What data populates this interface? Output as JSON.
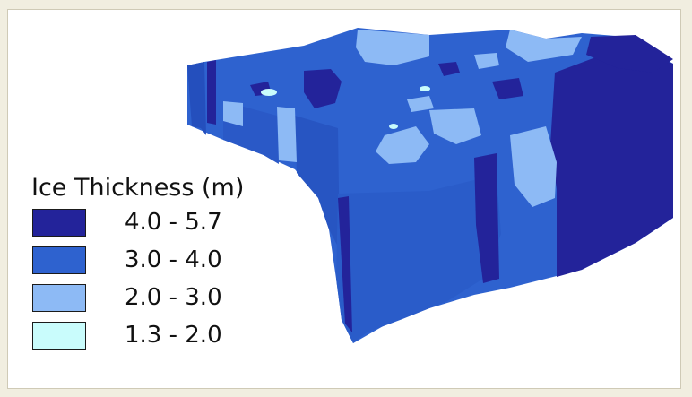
{
  "legend": {
    "title": "Ice Thickness (m)",
    "classes": [
      {
        "label": "4.0 - 5.7",
        "color": "#23239a"
      },
      {
        "label": "3.0 - 4.0",
        "color": "#2e62cf"
      },
      {
        "label": "2.0 - 3.0",
        "color": "#8dbaf5"
      },
      {
        "label": "1.3 - 2.0",
        "color": "#c9fcfc"
      }
    ]
  },
  "colors": {
    "background": "#f1eee0",
    "panel": "#ffffff",
    "dark_blue": "#23239a",
    "mid_blue": "#2e62cf",
    "light_blue": "#8dbaf5",
    "pale_cyan": "#c9fcfc",
    "shade_blue": "#244fbd"
  }
}
